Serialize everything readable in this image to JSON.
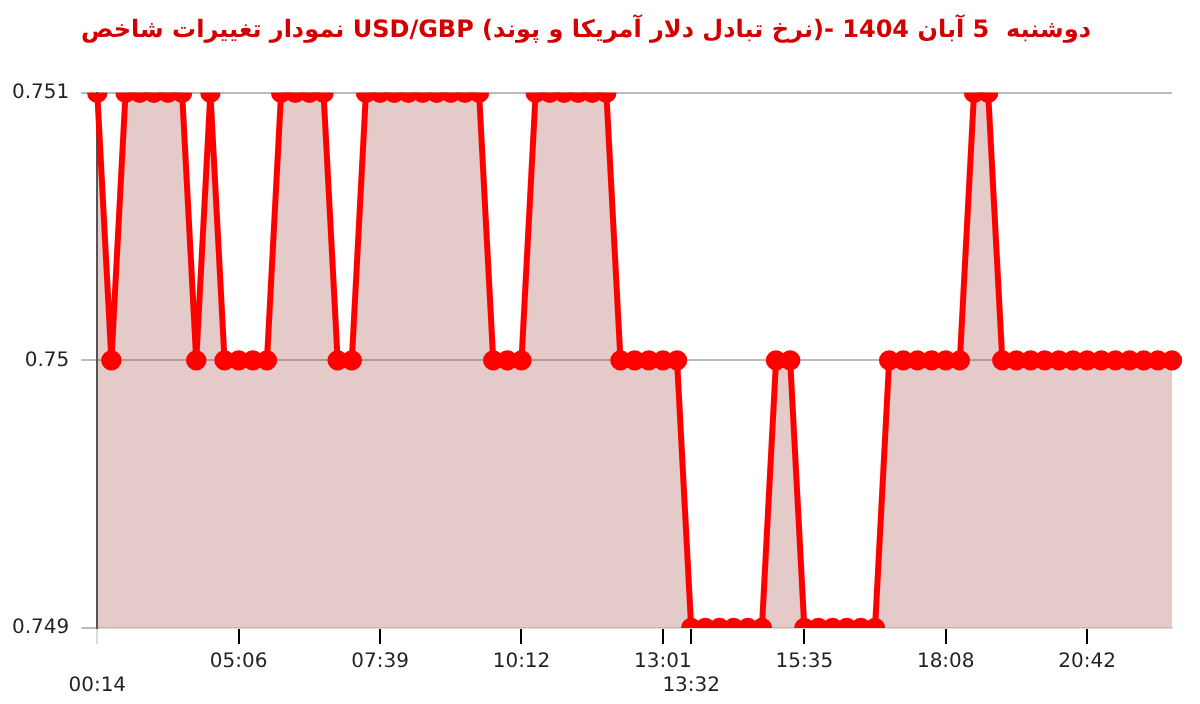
{
  "chart_data": {
    "type": "area",
    "title": "نمودار تغییرات شاخص USD/GBP (نرخ تبادل دلار آمریکا و پوند)- دوشنبه  5 آبان 1404",
    "categories": [
      "00:14",
      null,
      null,
      null,
      null,
      null,
      null,
      null,
      null,
      null,
      "05:06",
      null,
      null,
      null,
      null,
      null,
      null,
      null,
      null,
      null,
      "07:39",
      null,
      null,
      null,
      null,
      null,
      null,
      null,
      null,
      null,
      "10:12",
      null,
      null,
      null,
      null,
      null,
      null,
      null,
      null,
      null,
      "13:01",
      null,
      "13:32",
      null,
      null,
      null,
      null,
      null,
      null,
      null,
      "15:35",
      null,
      null,
      null,
      null,
      null,
      null,
      null,
      null,
      null,
      "18:08",
      null,
      null,
      null,
      null,
      null,
      null,
      null,
      null,
      null,
      "20:42",
      null,
      null,
      null,
      null,
      null,
      null
    ],
    "series": [
      {
        "color": "#ff0000",
        "values": [
          0.751,
          0.75,
          0.751,
          0.751,
          0.751,
          0.751,
          0.751,
          0.75,
          0.751,
          0.75,
          0.75,
          0.75,
          0.75,
          0.751,
          0.751,
          0.751,
          0.751,
          0.75,
          0.75,
          0.751,
          0.751,
          0.751,
          0.751,
          0.751,
          0.751,
          0.751,
          0.751,
          0.751,
          0.75,
          0.75,
          0.75,
          0.751,
          0.751,
          0.751,
          0.751,
          0.751,
          0.751,
          0.75,
          0.75,
          0.75,
          0.75,
          0.75,
          0.749,
          0.749,
          0.749,
          0.749,
          0.749,
          0.749,
          0.75,
          0.75,
          0.749,
          0.749,
          0.749,
          0.749,
          0.749,
          0.749,
          0.75,
          0.75,
          0.75,
          0.75,
          0.75,
          0.75,
          0.751,
          0.751,
          0.75,
          0.75,
          0.75,
          0.75,
          0.75,
          0.75,
          0.75,
          0.75,
          0.75,
          0.75,
          0.75,
          0.75,
          0.75
        ]
      }
    ],
    "ylim": [
      0.749,
      0.751
    ],
    "yticks": [
      0.749,
      0.75,
      0.751
    ],
    "grid": "y",
    "legend": false,
    "marker": "circle",
    "line_style": "solid"
  }
}
